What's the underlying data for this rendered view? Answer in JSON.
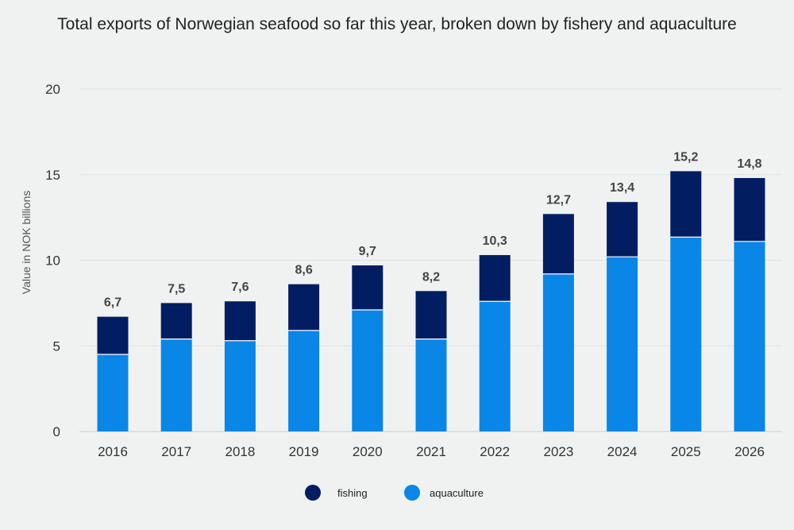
{
  "chart_data": {
    "type": "bar",
    "stacked": true,
    "title": "Total exports of Norwegian seafood so far this year, broken down by fishery and aquaculture",
    "ylabel": "Value in NOK billions",
    "ylim": [
      0,
      20
    ],
    "yticks": [
      0,
      5,
      10,
      15,
      20
    ],
    "grid": true,
    "legend_position": "bottom",
    "categories": [
      "2016",
      "2017",
      "2018",
      "2019",
      "2020",
      "2021",
      "2022",
      "2023",
      "2024",
      "2025",
      "2026"
    ],
    "series": [
      {
        "name": "aquaculture",
        "color": "#0a86e6",
        "values": [
          4.5,
          5.4,
          5.3,
          5.9,
          7.1,
          5.4,
          7.6,
          9.2,
          10.2,
          11.35,
          11.1
        ]
      },
      {
        "name": "fishing",
        "color": "#021d62",
        "values": [
          2.2,
          2.1,
          2.3,
          2.7,
          2.6,
          2.8,
          2.7,
          3.5,
          3.2,
          3.85,
          3.7
        ]
      }
    ],
    "totals": [
      "6,7",
      "7,5",
      "7,6",
      "8,6",
      "9,7",
      "8,2",
      "10,3",
      "12,7",
      "13,4",
      "15,2",
      "14,8"
    ]
  },
  "legend": [
    {
      "label": "fishing",
      "color": "#021d62"
    },
    {
      "label": "aquaculture",
      "color": "#0a86e6"
    }
  ]
}
